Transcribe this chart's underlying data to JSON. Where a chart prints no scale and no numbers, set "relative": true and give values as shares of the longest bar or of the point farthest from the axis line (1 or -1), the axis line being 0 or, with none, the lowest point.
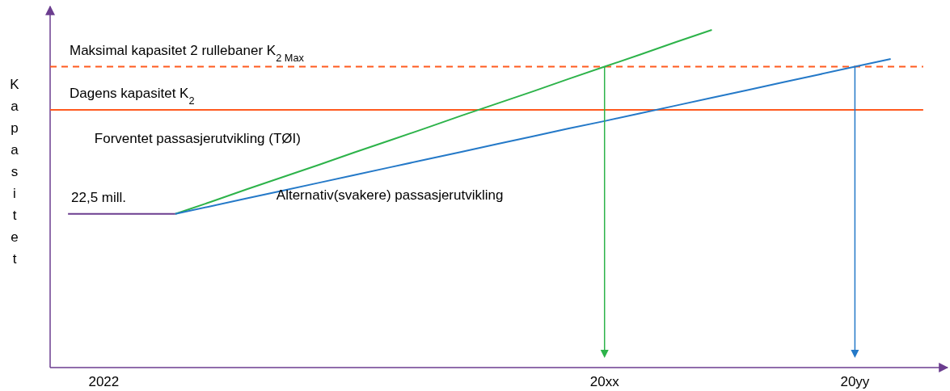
{
  "chart_data": {
    "type": "line",
    "relative": true,
    "ylabel": "Kapasitet",
    "legend": false,
    "categories": [
      null,
      "2022",
      null,
      null,
      null,
      null,
      null,
      null,
      null,
      null,
      null,
      null,
      null,
      null,
      null,
      "20xx",
      null,
      null,
      null,
      null,
      null,
      null,
      "20yy",
      null,
      null
    ],
    "series": [
      {
        "color": "#6b3d8f",
        "values": [
          0.455,
          0.455,
          0.455,
          0.455,
          null,
          null,
          null,
          null,
          null,
          null,
          null,
          null,
          null,
          null,
          null,
          null,
          null,
          null,
          null,
          null,
          null,
          null,
          null,
          null,
          null
        ]
      },
      {
        "name": "Forventet passasjerutvikling (TØI)",
        "color": "#2db34a",
        "values": [
          null,
          null,
          null,
          0.455,
          0.491,
          0.528,
          0.564,
          0.6,
          0.637,
          0.673,
          0.709,
          0.746,
          0.782,
          0.818,
          0.855,
          0.891,
          0.927,
          0.964,
          1.0,
          null,
          null,
          null,
          null,
          null,
          null
        ]
      },
      {
        "name": "Alternativ(svakere) passasjerutvikling",
        "color": "#2479c8",
        "values": [
          null,
          null,
          null,
          0.455,
          0.478,
          0.501,
          0.524,
          0.547,
          0.57,
          0.593,
          0.616,
          0.639,
          0.662,
          0.685,
          0.708,
          0.73,
          0.753,
          0.776,
          0.799,
          0.822,
          0.845,
          0.868,
          0.891,
          0.914,
          null
        ]
      }
    ],
    "ref_lines": [
      {
        "axis": "y",
        "value": 0.891,
        "label": "Maksimal kapasitet 2 rullebaner K$_{2 Max}$",
        "color": "#ff5a1f",
        "line_style": "dashed"
      },
      {
        "axis": "y",
        "value": 0.763,
        "label": "Dagens kapasitet K$_{2}$",
        "color": "#ff5a1f",
        "line_style": "solid"
      }
    ],
    "annotations": [
      {
        "text": "22,5 mill.",
        "y": 0.455
      }
    ]
  }
}
